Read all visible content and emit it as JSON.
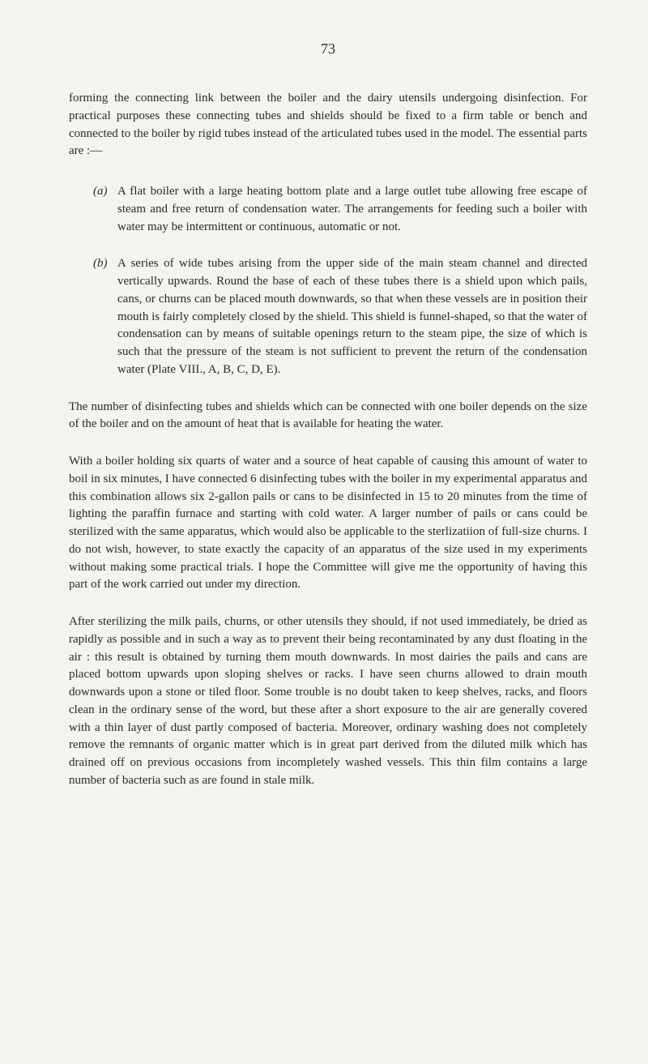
{
  "page_number": "73",
  "intro_paragraph": "forming the connecting link between the boiler and the dairy utensils undergoing disinfection. For practical purposes these connecting tubes and shields should be fixed to a firm table or bench and connected to the boiler by rigid tubes instead of the articulated tubes used in the model. The essential parts are :—",
  "item_a_marker": "(a)",
  "item_a_text": "A flat boiler with a large heating bottom plate and a large outlet tube allowing free escape of steam and free return of condensation water. The arrangements for feeding such a boiler with water may be intermittent or continuous, automatic or not.",
  "item_b_marker": "(b)",
  "item_b_text": "A series of wide tubes arising from the upper side of the main steam channel and directed vertically upwards. Round the base of each of these tubes there is a shield upon which pails, cans, or churns can be placed mouth downwards, so that when these vessels are in position their mouth is fairly completely closed by the shield. This shield is funnel-shaped, so that the water of condensation can by means of suitable openings return to the steam pipe, the size of which is such that the pressure of the steam is not sufficient to prevent the return of the condensation water (Plate VIII., A, B, C, D, E).",
  "paragraph_2": "The number of disinfecting tubes and shields which can be connected with one boiler depends on the size of the boiler and on the amount of heat that is available for heating the water.",
  "paragraph_3": "With a boiler holding six quarts of water and a source of heat capable of causing this amount of water to boil in six minutes, I have connected 6 disinfecting tubes with the boiler in my experimental apparatus and this combination allows six 2-gallon pails or cans to be disinfected in 15 to 20 minutes from the time of lighting the paraffin furnace and starting with cold water. A larger number of pails or cans could be sterilized with the same apparatus, which would also be applicable to the sterlizatiion of full-size churns. I do not wish, however, to state exactly the capacity of an apparatus of the size used in my experiments without making some practical trials. I hope the Committee will give me the opportunity of having this part of the work carried out under my direction.",
  "paragraph_4": "After sterilizing the milk pails, churns, or other utensils they should, if not used immediately, be dried as rapidly as possible and in such a way as to prevent their being recontaminated by any dust floating in the air : this result is obtained by turning them mouth downwards. In most dairies the pails and cans are placed bottom upwards upon sloping shelves or racks. I have seen churns allowed to drain mouth downwards upon a stone or tiled floor. Some trouble is no doubt taken to keep shelves, racks, and floors clean in the ordinary sense of the word, but these after a short exposure to the air are generally covered with a thin layer of dust partly composed of bacteria. Moreover, ordinary washing does not completely remove the remnants of organic matter which is in great part derived from the diluted milk which has drained off on previous occasions from incompletely washed vessels. This thin film contains a large number of bacteria such as are found in stale milk."
}
